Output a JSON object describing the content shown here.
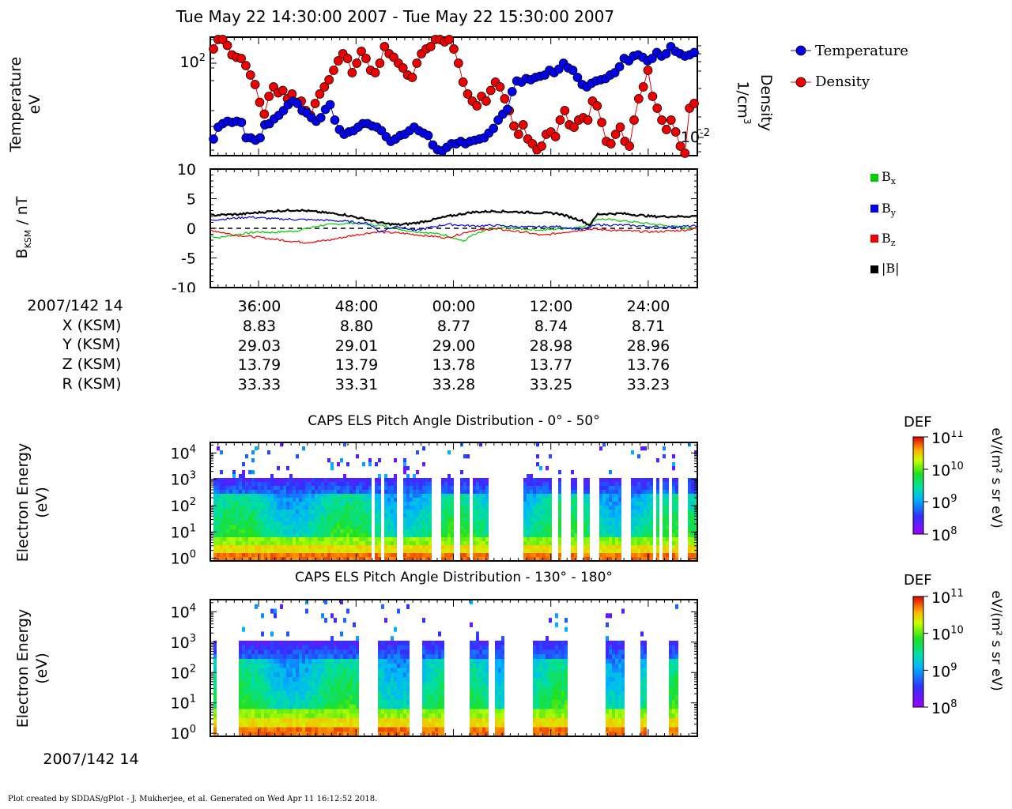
{
  "plot_title": "Tue May 22 14:30:00 2007 - Tue May 22 15:30:00 2007",
  "colors": {
    "temperature": "#0000ee",
    "density": "#ee0000",
    "bx": "#00cc00",
    "by": "#0000ee",
    "bz": "#ee0000",
    "btot": "#000000"
  },
  "chart_data": [
    {
      "type": "scatter",
      "panel": "plasma-moments",
      "x_time_range": [
        "14:30:00",
        "15:30:00"
      ],
      "y_left_label_line1": "Temperature",
      "y_left_label_line2": "eV",
      "y_left_scale": "log",
      "y_left_tick": "10",
      "y_left_tick_exp": "2",
      "y_right_label_line1": "Density",
      "y_right_label_line2": "1/cm",
      "y_right_label_exp": "3",
      "y_right_scale": "log",
      "y_right_tick": "10",
      "y_right_tick_exp": "-2",
      "legend_placement": "right",
      "series": [
        {
          "name": "Temperature",
          "axis": "left",
          "log_position": [
            0.14,
            0.24,
            0.27,
            0.29,
            0.28,
            0.29,
            0.28,
            0.15,
            0.15,
            0.13,
            0.15,
            0.26,
            0.27,
            0.31,
            0.34,
            0.38,
            0.43,
            0.46,
            0.44,
            0.38,
            0.36,
            0.32,
            0.29,
            0.32,
            0.39,
            0.43,
            0.3,
            0.22,
            0.18,
            0.2,
            0.21,
            0.24,
            0.27,
            0.27,
            0.25,
            0.24,
            0.21,
            0.16,
            0.12,
            0.14,
            0.17,
            0.18,
            0.21,
            0.24,
            0.21,
            0.19,
            0.17,
            0.09,
            0.05,
            0.04,
            0.07,
            0.1,
            0.1,
            0.12,
            0.1,
            0.12,
            0.13,
            0.14,
            0.15,
            0.19,
            0.23,
            0.3,
            0.35,
            0.39,
            0.54,
            0.63,
            0.62,
            0.65,
            0.64,
            0.66,
            0.67,
            0.68,
            0.72,
            0.7,
            0.73,
            0.78,
            0.74,
            0.72,
            0.66,
            0.6,
            0.58,
            0.61,
            0.63,
            0.64,
            0.65,
            0.68,
            0.7,
            0.75,
            0.82,
            0.8,
            0.84,
            0.85,
            0.83,
            0.8,
            0.82,
            0.87,
            0.84,
            0.86,
            0.92,
            0.88,
            0.86,
            0.84,
            0.85,
            0.87
          ]
        },
        {
          "name": "Density",
          "axis": "right",
          "log_position": [
            0.9,
            0.98,
            0.98,
            0.93,
            0.85,
            0.83,
            0.82,
            0.76,
            0.68,
            0.6,
            0.45,
            0.35,
            0.5,
            0.58,
            0.53,
            0.55,
            0.48,
            0.52,
            0.45,
            0.46,
            0.38,
            0.34,
            0.44,
            0.52,
            0.58,
            0.64,
            0.72,
            0.8,
            0.86,
            0.82,
            0.7,
            0.78,
            0.88,
            0.82,
            0.72,
            0.7,
            0.78,
            0.92,
            0.86,
            0.83,
            0.78,
            0.74,
            0.68,
            0.66,
            0.78,
            0.86,
            0.9,
            0.92,
            0.98,
            0.98,
            0.96,
            0.98,
            0.9,
            0.78,
            0.62,
            0.52,
            0.46,
            0.42,
            0.5,
            0.46,
            0.55,
            0.62,
            0.58,
            0.48,
            0.38,
            0.25,
            0.18,
            0.26,
            0.14,
            0.1,
            0.05,
            0.08,
            0.18,
            0.2,
            0.16,
            0.3,
            0.38,
            0.26,
            0.24,
            0.3,
            0.32,
            0.3,
            0.46,
            0.42,
            0.28,
            0.12,
            0.1,
            0.18,
            0.24,
            0.12,
            0.08,
            0.3,
            0.48,
            0.58,
            0.72,
            0.5,
            0.4,
            0.3,
            0.22,
            0.3,
            0.2,
            0.08,
            0.02,
            0.4,
            0.44
          ]
        }
      ]
    },
    {
      "type": "line",
      "panel": "magnetic-field",
      "x_time_range": [
        "14:30:00",
        "15:30:00"
      ],
      "y_label_main": "B",
      "y_label_sub": "KSM",
      "y_label_unit": " / nT",
      "ylim": [
        -10,
        10
      ],
      "y_ticks": [
        "10",
        "5",
        "0",
        "-5",
        "-10"
      ],
      "grid": false,
      "zero_line": "dashed",
      "legend_placement": "right",
      "series": [
        {
          "name": "B",
          "sub": "x",
          "anchors": [
            [
              0,
              -1.2
            ],
            [
              10,
              -1.6
            ],
            [
              30,
              -1.1
            ],
            [
              60,
              -0.6
            ],
            [
              80,
              -0.7
            ],
            [
              110,
              -0.4
            ],
            [
              140,
              0.5
            ],
            [
              180,
              0.9
            ],
            [
              220,
              0.4
            ],
            [
              250,
              -0.4
            ],
            [
              280,
              -0.8
            ],
            [
              300,
              -1.2
            ],
            [
              320,
              -2.2
            ],
            [
              330,
              -1.3
            ],
            [
              350,
              -0.3
            ],
            [
              370,
              0.1
            ],
            [
              420,
              -0.3
            ],
            [
              470,
              0.2
            ],
            [
              490,
              1.6
            ],
            [
              520,
              1.3
            ],
            [
              560,
              0.7
            ],
            [
              600,
              0.1
            ],
            [
              616,
              0.0
            ]
          ]
        },
        {
          "name": "B",
          "sub": "y",
          "anchors": [
            [
              0,
              1.4
            ],
            [
              20,
              1.6
            ],
            [
              50,
              1.9
            ],
            [
              80,
              1.6
            ],
            [
              110,
              1.5
            ],
            [
              140,
              1.4
            ],
            [
              170,
              1.2
            ],
            [
              200,
              0.8
            ],
            [
              215,
              -0.6
            ],
            [
              235,
              0.4
            ],
            [
              260,
              -0.4
            ],
            [
              280,
              0.2
            ],
            [
              300,
              0.7
            ],
            [
              330,
              0.4
            ],
            [
              360,
              0.5
            ],
            [
              400,
              0.2
            ],
            [
              440,
              0.3
            ],
            [
              470,
              -0.2
            ],
            [
              490,
              0.6
            ],
            [
              530,
              0.5
            ],
            [
              570,
              0.2
            ],
            [
              616,
              0.4
            ]
          ]
        },
        {
          "name": "B",
          "sub": "z",
          "anchors": [
            [
              0,
              -0.3
            ],
            [
              30,
              -1.1
            ],
            [
              60,
              -1.5
            ],
            [
              90,
              -2.0
            ],
            [
              120,
              -2.4
            ],
            [
              150,
              -2.0
            ],
            [
              180,
              -1.2
            ],
            [
              210,
              -0.6
            ],
            [
              240,
              -0.8
            ],
            [
              270,
              -1.2
            ],
            [
              300,
              -1.6
            ],
            [
              330,
              -0.4
            ],
            [
              360,
              -0.1
            ],
            [
              400,
              -0.7
            ],
            [
              420,
              -1.2
            ],
            [
              450,
              -0.6
            ],
            [
              480,
              -0.1
            ],
            [
              520,
              -0.4
            ],
            [
              560,
              -0.6
            ],
            [
              600,
              -0.3
            ],
            [
              616,
              0.0
            ]
          ]
        },
        {
          "name": "|B|",
          "sub": "",
          "anchors": [
            [
              0,
              2.2
            ],
            [
              40,
              2.4
            ],
            [
              80,
              2.9
            ],
            [
              110,
              3.1
            ],
            [
              140,
              2.7
            ],
            [
              170,
              2.3
            ],
            [
              200,
              1.4
            ],
            [
              220,
              0.8
            ],
            [
              240,
              0.6
            ],
            [
              260,
              0.9
            ],
            [
              280,
              1.4
            ],
            [
              300,
              2.0
            ],
            [
              330,
              2.7
            ],
            [
              360,
              2.9
            ],
            [
              400,
              2.7
            ],
            [
              440,
              2.5
            ],
            [
              470,
              1.3
            ],
            [
              480,
              0.5
            ],
            [
              490,
              2.4
            ],
            [
              520,
              2.5
            ],
            [
              560,
              2.0
            ],
            [
              600,
              2.0
            ],
            [
              616,
              2.1
            ]
          ]
        }
      ]
    },
    {
      "type": "heatmap",
      "panel": "els-pad-0-50",
      "title": "CAPS ELS Pitch Angle Distribution - 0° - 50°",
      "ylabel_line1": "Electron Energy",
      "ylabel_line2": "(eV)",
      "y_scale": "log",
      "y_tick_base": "10",
      "y_tick_exps": [
        "4",
        "3",
        "2",
        "1",
        "0"
      ],
      "colorbar_title": "DEF",
      "colorbar_unit": "eV/(m² s sr eV)",
      "colorbar_ticks": [
        {
          "base": "10",
          "exp": "11"
        },
        {
          "base": "10",
          "exp": "10"
        },
        {
          "base": "10",
          "exp": "9"
        },
        {
          "base": "10",
          "exp": "8"
        }
      ],
      "colorbar_range": [
        8,
        11
      ],
      "gaps": [
        [
          0,
          6
        ],
        [
          206,
          210
        ],
        [
          218,
          222
        ],
        [
          236,
          243
        ],
        [
          267,
          270
        ],
        [
          280,
          291
        ],
        [
          307,
          315
        ],
        [
          330,
          334
        ],
        [
          351,
          398
        ],
        [
          434,
          440
        ],
        [
          446,
          456
        ],
        [
          466,
          472
        ],
        [
          480,
          494
        ],
        [
          519,
          533
        ],
        [
          560,
          566
        ],
        [
          569,
          574
        ],
        [
          581,
          586
        ],
        [
          593,
          606
        ]
      ]
    },
    {
      "type": "heatmap",
      "panel": "els-pad-130-180",
      "title": "CAPS ELS Pitch Angle Distribution - 130° - 180°",
      "ylabel_line1": "Electron Energy",
      "ylabel_line2": "(eV)",
      "y_scale": "log",
      "y_tick_base": "10",
      "y_tick_exps": [
        "4",
        "3",
        "2",
        "1",
        "0"
      ],
      "colorbar_title": "DEF",
      "colorbar_unit": "eV/(m² s sr eV)",
      "colorbar_ticks": [
        {
          "base": "10",
          "exp": "11"
        },
        {
          "base": "10",
          "exp": "10"
        },
        {
          "base": "10",
          "exp": "9"
        },
        {
          "base": "10",
          "exp": "8"
        }
      ],
      "colorbar_range": [
        8,
        11
      ],
      "gaps": [
        [
          0,
          6
        ],
        [
          10,
          38
        ],
        [
          190,
          212
        ],
        [
          252,
          268
        ],
        [
          298,
          330
        ],
        [
          351,
          362
        ],
        [
          373,
          410
        ],
        [
          452,
          502
        ],
        [
          524,
          544
        ],
        [
          551,
          582
        ],
        [
          593,
          616
        ]
      ]
    }
  ],
  "ephemeris": {
    "row_labels": [
      "2007/142 14",
      "X (KSM)",
      "Y (KSM)",
      "Z (KSM)",
      "R (KSM)"
    ],
    "columns": [
      {
        "time": "36:00",
        "x": "8.83",
        "y": "29.03",
        "z": "13.79",
        "r": "33.33"
      },
      {
        "time": "48:00",
        "x": "8.80",
        "y": "29.01",
        "z": "13.79",
        "r": "33.31"
      },
      {
        "time": "00:00",
        "x": "8.77",
        "y": "29.00",
        "z": "13.78",
        "r": "33.28"
      },
      {
        "time": "12:00",
        "x": "8.74",
        "y": "28.98",
        "z": "13.77",
        "r": "33.25"
      },
      {
        "time": "24:00",
        "x": "8.71",
        "y": "28.96",
        "z": "13.76",
        "r": "33.23"
      }
    ]
  },
  "bottom_axis": {
    "date_label": "2007/142 14",
    "ticks": [
      "36:00",
      "48:00",
      "00:00",
      "12:00",
      "24:00"
    ]
  },
  "footer": "Plot created by SDDAS/gPlot - J. Mukherjee, et al.  Generated on Wed Apr 11 16:12:52 2018."
}
